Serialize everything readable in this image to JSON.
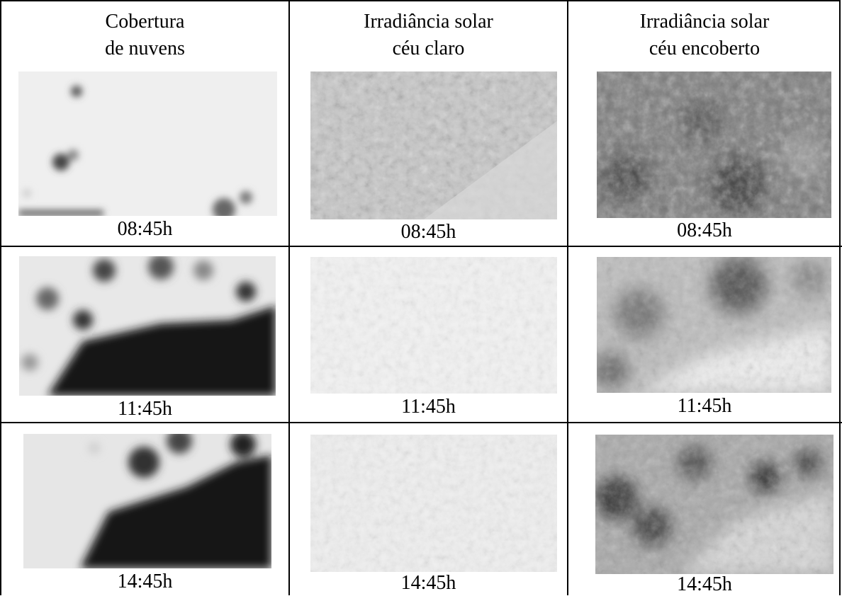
{
  "table": {
    "headers": [
      {
        "line1": "Cobertura",
        "line2": "de nuvens"
      },
      {
        "line1": "Irradiância solar",
        "line2": "céu claro"
      },
      {
        "line1": "Irradiância solar",
        "line2": "céu encoberto"
      }
    ],
    "rows": [
      {
        "captions": [
          "08:45h",
          "08:45h",
          "08:45h"
        ]
      },
      {
        "captions": [
          "11:45h",
          "11:45h",
          "11:45h"
        ]
      },
      {
        "captions": [
          "14:45h",
          "14:45h",
          "14:45h"
        ]
      }
    ]
  }
}
